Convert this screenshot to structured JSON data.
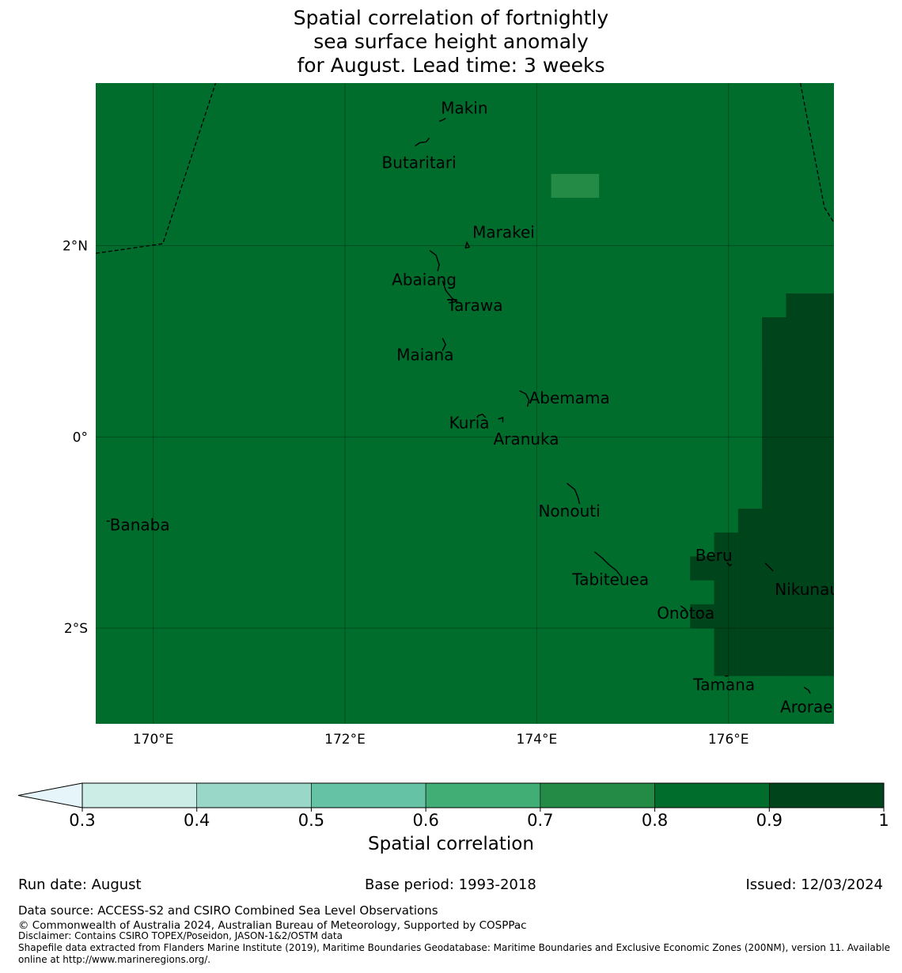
{
  "title_lines": [
    "Spatial correlation of fortnightly",
    "sea surface height anomaly",
    "for August. Lead time: 3 weeks"
  ],
  "map": {
    "extent": {
      "lon_min": 169.4,
      "lon_max": 177.1,
      "lat_min": -3.0,
      "lat_max": 3.7
    },
    "gridlines": true,
    "x_ticks": [
      {
        "lon": 170,
        "label": "170°E"
      },
      {
        "lon": 172,
        "label": "172°E"
      },
      {
        "lon": 174,
        "label": "174°E"
      },
      {
        "lon": 176,
        "label": "176°E"
      }
    ],
    "y_ticks": [
      {
        "lat": 2,
        "label": "2°N"
      },
      {
        "lat": 0,
        "label": "0°"
      },
      {
        "lat": -2,
        "label": "2°S"
      }
    ],
    "background_correlation_bin": "0.8-0.9",
    "patches": [
      {
        "lon": [
          174.15,
          174.65
        ],
        "lat": [
          2.5,
          2.75
        ],
        "correlation_bin": "0.7-0.8"
      },
      {
        "lon": [
          176.6,
          177.1
        ],
        "lat": [
          -2.5,
          1.5
        ],
        "correlation_bin": "0.9-1"
      },
      {
        "lon": [
          176.35,
          176.6
        ],
        "lat": [
          -2.5,
          1.25
        ],
        "correlation_bin": "0.9-1"
      },
      {
        "lon": [
          176.35,
          176.6
        ],
        "lat": [
          0.75,
          1.25
        ],
        "correlation_bin": "0.9-1"
      },
      {
        "lon": [
          176.35,
          176.6
        ],
        "lat": [
          -2.5,
          -0.5
        ],
        "correlation_bin": "0.9-1"
      },
      {
        "lon": [
          176.1,
          176.35
        ],
        "lat": [
          -2.5,
          -0.75
        ],
        "correlation_bin": "0.9-1"
      },
      {
        "lon": [
          175.85,
          176.1
        ],
        "lat": [
          -2.5,
          -1.0
        ],
        "correlation_bin": "0.9-1"
      },
      {
        "lon": [
          175.6,
          175.85
        ],
        "lat": [
          -1.5,
          -1.25
        ],
        "correlation_bin": "0.9-1"
      },
      {
        "lon": [
          175.6,
          175.85
        ],
        "lat": [
          -2.0,
          -1.75
        ],
        "correlation_bin": "0.9-1"
      }
    ],
    "islands": [
      {
        "name": "Makin",
        "lon": 173.0,
        "lat": 3.3
      },
      {
        "name": "Butaritari",
        "lon": 172.78,
        "lat": 3.06
      },
      {
        "name": "Marakei",
        "lon": 173.28,
        "lat": 2.0
      },
      {
        "name": "Abaiang",
        "lon": 172.95,
        "lat": 1.8
      },
      {
        "name": "Tarawa",
        "lon": 173.05,
        "lat": 1.45
      },
      {
        "name": "Maiana",
        "lon": 173.0,
        "lat": 0.95
      },
      {
        "name": "Abemama",
        "lon": 173.87,
        "lat": 0.4
      },
      {
        "name": "Kuria",
        "lon": 173.4,
        "lat": 0.22
      },
      {
        "name": "Aranuka",
        "lon": 173.63,
        "lat": 0.17
      },
      {
        "name": "Nonouti",
        "lon": 174.43,
        "lat": -0.65
      },
      {
        "name": "Banaba",
        "lon": 169.53,
        "lat": -0.88
      },
      {
        "name": "Tabiteuea",
        "lon": 174.8,
        "lat": -1.3
      },
      {
        "name": "Beru",
        "lon": 176.0,
        "lat": -1.33
      },
      {
        "name": "Nikunau",
        "lon": 176.45,
        "lat": -1.37
      },
      {
        "name": "Onotoa",
        "lon": 175.55,
        "lat": -1.8
      },
      {
        "name": "Tamana",
        "lon": 175.98,
        "lat": -2.5
      },
      {
        "name": "Arorae",
        "lon": 176.82,
        "lat": -2.65
      }
    ]
  },
  "colorbar": {
    "title": "Spatial correlation",
    "extend": "min",
    "under_color": "#e5f5f9",
    "bins": [
      {
        "from": 0.3,
        "to": 0.4,
        "color": "#ccece6"
      },
      {
        "from": 0.4,
        "to": 0.5,
        "color": "#99d8c9"
      },
      {
        "from": 0.5,
        "to": 0.6,
        "color": "#66c2a4"
      },
      {
        "from": 0.6,
        "to": 0.7,
        "color": "#41ae76"
      },
      {
        "from": 0.7,
        "to": 0.8,
        "color": "#238b45"
      },
      {
        "from": 0.8,
        "to": 0.9,
        "color": "#006d2c"
      },
      {
        "from": 0.9,
        "to": 1.0,
        "color": "#00441b"
      }
    ],
    "ticks": [
      "0.3",
      "0.4",
      "0.5",
      "0.6",
      "0.7",
      "0.8",
      "0.9",
      "1"
    ]
  },
  "footer": {
    "run_date": "Run date: August",
    "base_period": "Base period: 1993-2018",
    "issued": "Issued: 12/03/2024",
    "data_source": "Data source: ACCESS-S2 and CSIRO Combined Sea Level Observations",
    "copyright": "© Commonwealth of Australia 2024, Australian Bureau of Meteorology, Supported by COSPPac",
    "disclaimer": "Disclaimer: Contains CSIRO TOPEX/Poseidon, JASON-1&2/OSTM data",
    "shapefile": "Shapefile data extracted from Flanders Marine Institute (2019), Maritime Boundaries Geodatabase: Maritime Boundaries and Exclusive Economic Zones (200NM), version 11. Available online at http://www.marineregions.org/."
  }
}
